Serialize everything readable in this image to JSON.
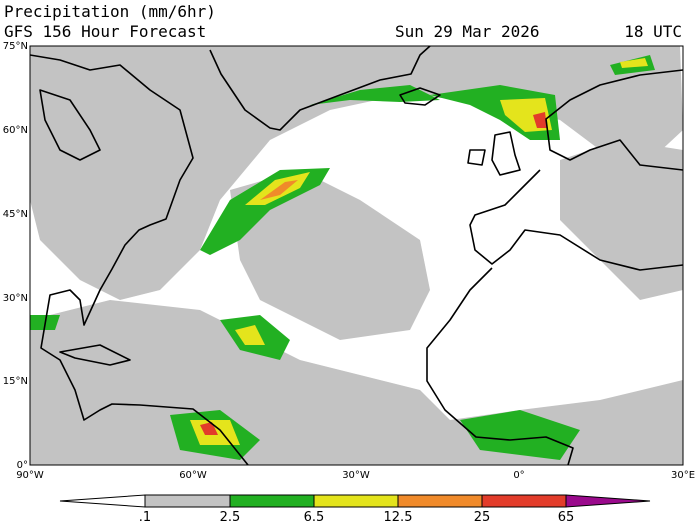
{
  "header": {
    "title": "Precipitation (mm/6hr)",
    "subtitle": "GFS 156 Hour Forecast",
    "date": "Sun 29 Mar 2026",
    "time": "18 UTC"
  },
  "latitude_labels": [
    "75°N",
    "60°N",
    "45°N",
    "30°N",
    "15°N",
    "0°"
  ],
  "longitude_labels": [
    "90°W",
    "60°W",
    "30°W",
    "0°",
    "30°E"
  ],
  "colorbar": {
    "labels": [
      ".1",
      "2.5",
      "6.5",
      "12.5",
      "25",
      "65"
    ]
  }
}
